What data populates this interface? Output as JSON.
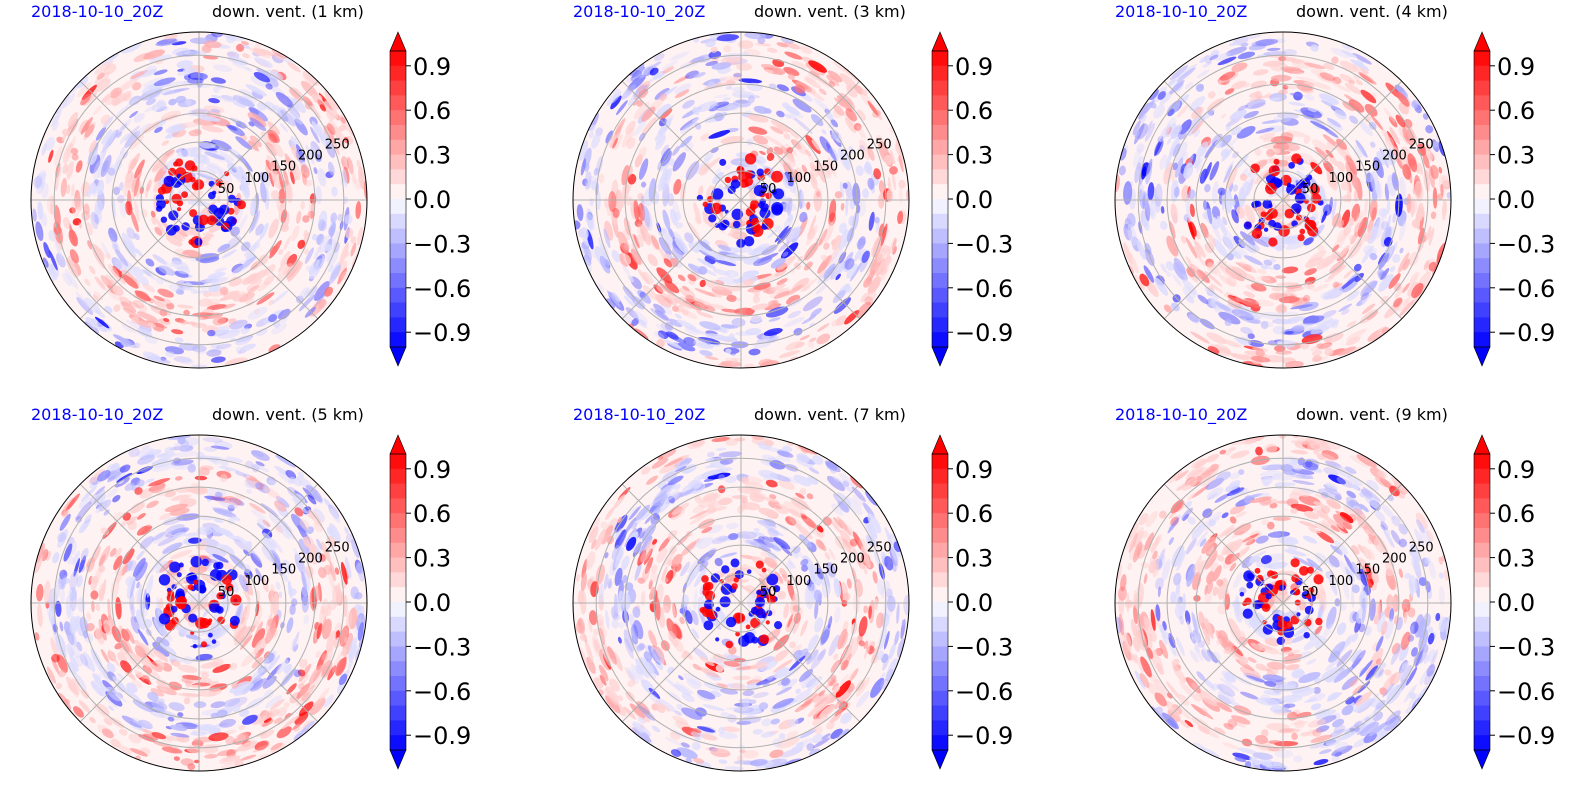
{
  "panels": [
    {
      "date": "2018-10-10_20Z",
      "title": "down. vent. (1 km)"
    },
    {
      "date": "2018-10-10_20Z",
      "title": "down. vent. (3 km)"
    },
    {
      "date": "2018-10-10_20Z",
      "title": "down. vent. (4 km)"
    },
    {
      "date": "2018-10-10_20Z",
      "title": "down. vent. (5 km)"
    },
    {
      "date": "2018-10-10_20Z",
      "title": "down. vent. (7 km)"
    },
    {
      "date": "2018-10-10_20Z",
      "title": "down. vent. (9 km)"
    }
  ],
  "chart_data": {
    "type": "heatmap",
    "projection": "polar",
    "radial_ticks": [
      "50",
      "100",
      "150",
      "200",
      "250"
    ],
    "colorbar": {
      "ticks": [
        "0.9",
        "0.6",
        "0.3",
        "0.0",
        "−0.3",
        "−0.6",
        "−0.9"
      ],
      "range": [
        -1.0,
        1.0
      ],
      "extend": "both",
      "cmap": "bwr",
      "colors": {
        "positive": "#ff0000",
        "neutral": "#ffffff",
        "negative": "#0000ff"
      }
    },
    "grid": true
  }
}
